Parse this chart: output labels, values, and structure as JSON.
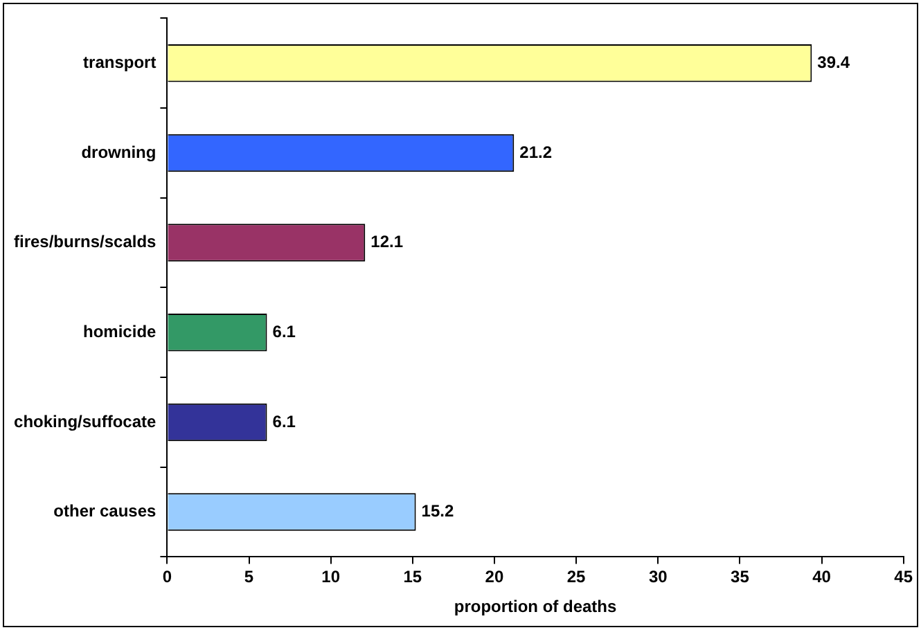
{
  "chart_data": {
    "type": "bar",
    "orientation": "horizontal",
    "xlabel": "proportion of deaths",
    "categories": [
      "transport",
      "drowning",
      "fires/burns/scalds",
      "homicide",
      "choking/suffocate",
      "other causes"
    ],
    "values": [
      39.4,
      21.2,
      12.1,
      6.1,
      6.1,
      15.2
    ],
    "colors": [
      "#ffff99",
      "#3366ff",
      "#993366",
      "#339966",
      "#333399",
      "#99ccff"
    ],
    "xlim": [
      0,
      45
    ],
    "xticks": [
      0,
      5,
      10,
      15,
      20,
      25,
      30,
      35,
      40,
      45
    ],
    "grid": false,
    "legend": false,
    "data_labels": true
  }
}
